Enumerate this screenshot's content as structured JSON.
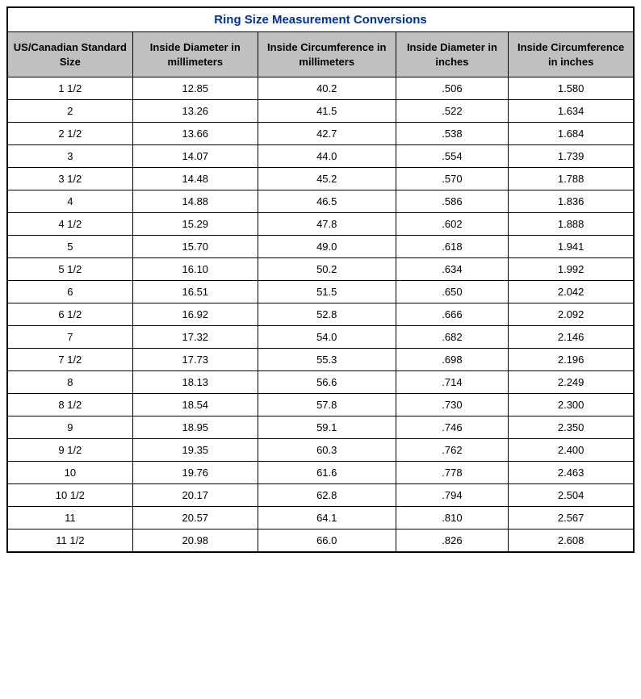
{
  "table": {
    "title": "Ring Size Measurement Conversions",
    "title_color": "#003399",
    "header_bg": "#c0c0c0",
    "border_color": "#000000",
    "background_color": "#ffffff",
    "font_family": "Verdana, Geneva, sans-serif",
    "title_fontsize": 15,
    "header_fontsize": 13,
    "data_fontsize": 13,
    "columns": [
      "US/Canadian Standard Size",
      "Inside Diameter in millimeters",
      "Inside Circumference in millimeters",
      "Inside Diameter in inches",
      "Inside Circumference in inches"
    ],
    "column_widths_pct": [
      20,
      20,
      22,
      18,
      20
    ],
    "rows": [
      [
        "1 1/2",
        "12.85",
        "40.2",
        ".506",
        "1.580"
      ],
      [
        "2",
        "13.26",
        "41.5",
        ".522",
        "1.634"
      ],
      [
        "2 1/2",
        "13.66",
        "42.7",
        ".538",
        "1.684"
      ],
      [
        "3",
        "14.07",
        "44.0",
        ".554",
        "1.739"
      ],
      [
        "3 1/2",
        "14.48",
        "45.2",
        ".570",
        "1.788"
      ],
      [
        "4",
        "14.88",
        "46.5",
        ".586",
        "1.836"
      ],
      [
        "4 1/2",
        "15.29",
        "47.8",
        ".602",
        "1.888"
      ],
      [
        "5",
        "15.70",
        "49.0",
        ".618",
        "1.941"
      ],
      [
        "5 1/2",
        "16.10",
        "50.2",
        ".634",
        "1.992"
      ],
      [
        "6",
        "16.51",
        "51.5",
        ".650",
        "2.042"
      ],
      [
        "6 1/2",
        "16.92",
        "52.8",
        ".666",
        "2.092"
      ],
      [
        "7",
        "17.32",
        "54.0",
        ".682",
        "2.146"
      ],
      [
        "7 1/2",
        "17.73",
        "55.3",
        ".698",
        "2.196"
      ],
      [
        "8",
        "18.13",
        "56.6",
        ".714",
        "2.249"
      ],
      [
        "8 1/2",
        "18.54",
        "57.8",
        ".730",
        "2.300"
      ],
      [
        "9",
        "18.95",
        "59.1",
        ".746",
        "2.350"
      ],
      [
        "9 1/2",
        "19.35",
        "60.3",
        ".762",
        "2.400"
      ],
      [
        "10",
        "19.76",
        "61.6",
        ".778",
        "2.463"
      ],
      [
        "10 1/2",
        "20.17",
        "62.8",
        ".794",
        "2.504"
      ],
      [
        "11",
        "20.57",
        "64.1",
        ".810",
        "2.567"
      ],
      [
        "11 1/2",
        "20.98",
        "66.0",
        ".826",
        "2.608"
      ]
    ]
  }
}
